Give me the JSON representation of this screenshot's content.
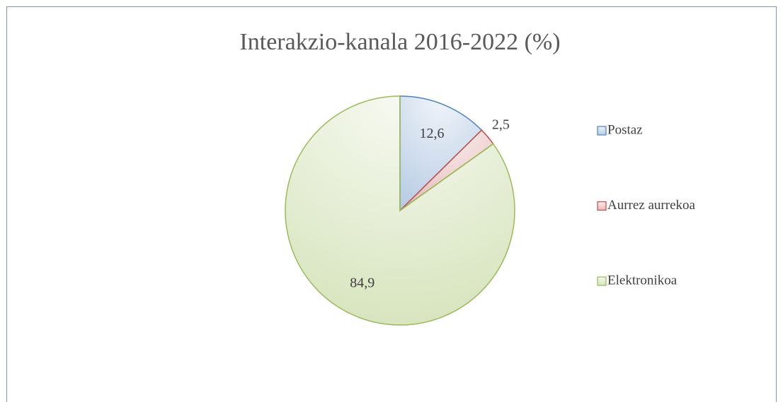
{
  "chart_data": {
    "type": "pie",
    "title": "Interakzio-kanala 2016-2022 (%)",
    "categories": [
      "Postaz",
      "Aurrez aurrekoa",
      "Elektronikoa"
    ],
    "values": [
      12.6,
      2.5,
      84.9
    ],
    "value_labels": [
      "12,6",
      "2,5",
      "84,9"
    ],
    "colors": [
      "#4f81bd",
      "#c0504d",
      "#9bbb59"
    ],
    "legend": "right"
  }
}
